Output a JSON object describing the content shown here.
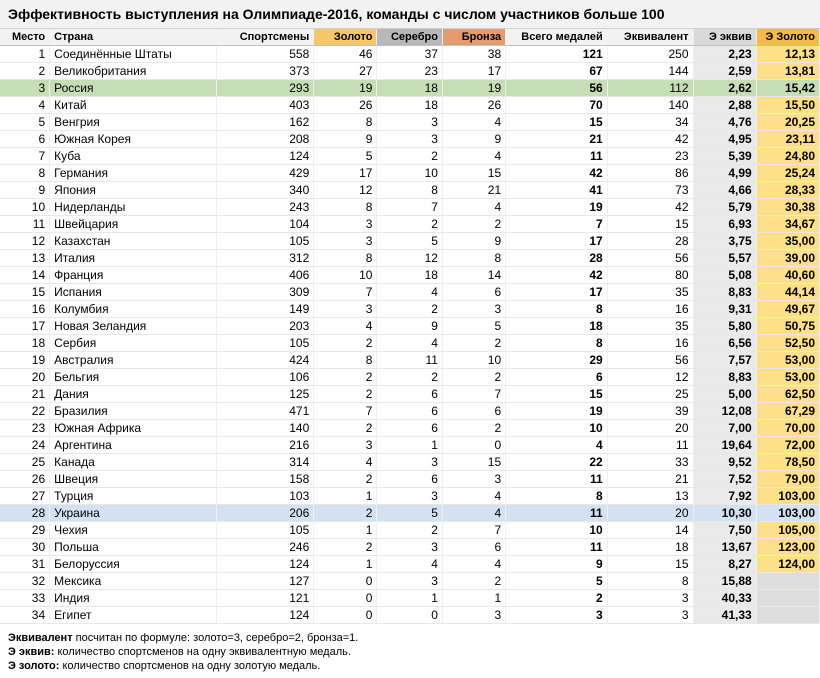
{
  "title": "Эффективность выступления на Олимпиаде-2016, команды с числом участников больше 100",
  "columns": [
    {
      "key": "rank",
      "label": "Место",
      "width": 44,
      "align": "right",
      "headerBg": "#f2f2f2"
    },
    {
      "key": "country",
      "label": "Страна",
      "width": 148,
      "align": "left",
      "headerBg": "#f2f2f2"
    },
    {
      "key": "athletes",
      "label": "Спортсмены",
      "width": 86,
      "align": "right",
      "headerBg": "#f2f2f2"
    },
    {
      "key": "gold",
      "label": "Золото",
      "width": 56,
      "align": "right",
      "headerBg": "#f6c66b"
    },
    {
      "key": "silver",
      "label": "Серебро",
      "width": 58,
      "align": "right",
      "headerBg": "#b8b8b8"
    },
    {
      "key": "bronze",
      "label": "Бронза",
      "width": 56,
      "align": "right",
      "headerBg": "#e49b6e"
    },
    {
      "key": "total",
      "label": "Всего медалей",
      "width": 90,
      "align": "right",
      "bold": true,
      "headerBg": "#f2f2f2"
    },
    {
      "key": "equiv",
      "label": "Эквивалент",
      "width": 76,
      "align": "right",
      "headerBg": "#f2f2f2"
    },
    {
      "key": "e_equiv",
      "label": "Э эквив",
      "width": 56,
      "align": "right",
      "bold": true,
      "headerBg": "#d9d9d9",
      "cellBg": "#eaeaea"
    },
    {
      "key": "e_gold",
      "label": "Э Золото",
      "width": 56,
      "align": "right",
      "bold": true,
      "headerBg": "#f6b94b",
      "cellBg": "#ffe08a"
    }
  ],
  "highlightRows": {
    "3": "#c5deb5",
    "28": "#d4e1f1"
  },
  "missingCellBg": "#dddddd",
  "rows": [
    {
      "rank": 1,
      "country": "Соединённые Штаты",
      "athletes": 558,
      "gold": 46,
      "silver": 37,
      "bronze": 38,
      "total": 121,
      "equiv": 250,
      "e_equiv": "2,23",
      "e_gold": "12,13"
    },
    {
      "rank": 2,
      "country": "Великобритания",
      "athletes": 373,
      "gold": 27,
      "silver": 23,
      "bronze": 17,
      "total": 67,
      "equiv": 144,
      "e_equiv": "2,59",
      "e_gold": "13,81"
    },
    {
      "rank": 3,
      "country": "Россия",
      "athletes": 293,
      "gold": 19,
      "silver": 18,
      "bronze": 19,
      "total": 56,
      "equiv": 112,
      "e_equiv": "2,62",
      "e_gold": "15,42"
    },
    {
      "rank": 4,
      "country": "Китай",
      "athletes": 403,
      "gold": 26,
      "silver": 18,
      "bronze": 26,
      "total": 70,
      "equiv": 140,
      "e_equiv": "2,88",
      "e_gold": "15,50"
    },
    {
      "rank": 5,
      "country": "Венгрия",
      "athletes": 162,
      "gold": 8,
      "silver": 3,
      "bronze": 4,
      "total": 15,
      "equiv": 34,
      "e_equiv": "4,76",
      "e_gold": "20,25"
    },
    {
      "rank": 6,
      "country": "Южная Корея",
      "athletes": 208,
      "gold": 9,
      "silver": 3,
      "bronze": 9,
      "total": 21,
      "equiv": 42,
      "e_equiv": "4,95",
      "e_gold": "23,11"
    },
    {
      "rank": 7,
      "country": "Куба",
      "athletes": 124,
      "gold": 5,
      "silver": 2,
      "bronze": 4,
      "total": 11,
      "equiv": 23,
      "e_equiv": "5,39",
      "e_gold": "24,80"
    },
    {
      "rank": 8,
      "country": "Германия",
      "athletes": 429,
      "gold": 17,
      "silver": 10,
      "bronze": 15,
      "total": 42,
      "equiv": 86,
      "e_equiv": "4,99",
      "e_gold": "25,24"
    },
    {
      "rank": 9,
      "country": "Япония",
      "athletes": 340,
      "gold": 12,
      "silver": 8,
      "bronze": 21,
      "total": 41,
      "equiv": 73,
      "e_equiv": "4,66",
      "e_gold": "28,33"
    },
    {
      "rank": 10,
      "country": "Нидерланды",
      "athletes": 243,
      "gold": 8,
      "silver": 7,
      "bronze": 4,
      "total": 19,
      "equiv": 42,
      "e_equiv": "5,79",
      "e_gold": "30,38"
    },
    {
      "rank": 11,
      "country": "Швейцария",
      "athletes": 104,
      "gold": 3,
      "silver": 2,
      "bronze": 2,
      "total": 7,
      "equiv": 15,
      "e_equiv": "6,93",
      "e_gold": "34,67"
    },
    {
      "rank": 12,
      "country": "Казахстан",
      "athletes": 105,
      "gold": 3,
      "silver": 5,
      "bronze": 9,
      "total": 17,
      "equiv": 28,
      "e_equiv": "3,75",
      "e_gold": "35,00"
    },
    {
      "rank": 13,
      "country": "Италия",
      "athletes": 312,
      "gold": 8,
      "silver": 12,
      "bronze": 8,
      "total": 28,
      "equiv": 56,
      "e_equiv": "5,57",
      "e_gold": "39,00"
    },
    {
      "rank": 14,
      "country": "Франция",
      "athletes": 406,
      "gold": 10,
      "silver": 18,
      "bronze": 14,
      "total": 42,
      "equiv": 80,
      "e_equiv": "5,08",
      "e_gold": "40,60"
    },
    {
      "rank": 15,
      "country": "Испания",
      "athletes": 309,
      "gold": 7,
      "silver": 4,
      "bronze": 6,
      "total": 17,
      "equiv": 35,
      "e_equiv": "8,83",
      "e_gold": "44,14"
    },
    {
      "rank": 16,
      "country": "Колумбия",
      "athletes": 149,
      "gold": 3,
      "silver": 2,
      "bronze": 3,
      "total": 8,
      "equiv": 16,
      "e_equiv": "9,31",
      "e_gold": "49,67"
    },
    {
      "rank": 17,
      "country": "Новая Зеландия",
      "athletes": 203,
      "gold": 4,
      "silver": 9,
      "bronze": 5,
      "total": 18,
      "equiv": 35,
      "e_equiv": "5,80",
      "e_gold": "50,75"
    },
    {
      "rank": 18,
      "country": "Сербия",
      "athletes": 105,
      "gold": 2,
      "silver": 4,
      "bronze": 2,
      "total": 8,
      "equiv": 16,
      "e_equiv": "6,56",
      "e_gold": "52,50"
    },
    {
      "rank": 19,
      "country": "Австралия",
      "athletes": 424,
      "gold": 8,
      "silver": 11,
      "bronze": 10,
      "total": 29,
      "equiv": 56,
      "e_equiv": "7,57",
      "e_gold": "53,00"
    },
    {
      "rank": 20,
      "country": "Бельгия",
      "athletes": 106,
      "gold": 2,
      "silver": 2,
      "bronze": 2,
      "total": 6,
      "equiv": 12,
      "e_equiv": "8,83",
      "e_gold": "53,00"
    },
    {
      "rank": 21,
      "country": "Дания",
      "athletes": 125,
      "gold": 2,
      "silver": 6,
      "bronze": 7,
      "total": 15,
      "equiv": 25,
      "e_equiv": "5,00",
      "e_gold": "62,50"
    },
    {
      "rank": 22,
      "country": "Бразилия",
      "athletes": 471,
      "gold": 7,
      "silver": 6,
      "bronze": 6,
      "total": 19,
      "equiv": 39,
      "e_equiv": "12,08",
      "e_gold": "67,29"
    },
    {
      "rank": 23,
      "country": "Южная Африка",
      "athletes": 140,
      "gold": 2,
      "silver": 6,
      "bronze": 2,
      "total": 10,
      "equiv": 20,
      "e_equiv": "7,00",
      "e_gold": "70,00"
    },
    {
      "rank": 24,
      "country": "Аргентина",
      "athletes": 216,
      "gold": 3,
      "silver": 1,
      "bronze": 0,
      "total": 4,
      "equiv": 11,
      "e_equiv": "19,64",
      "e_gold": "72,00"
    },
    {
      "rank": 25,
      "country": "Канада",
      "athletes": 314,
      "gold": 4,
      "silver": 3,
      "bronze": 15,
      "total": 22,
      "equiv": 33,
      "e_equiv": "9,52",
      "e_gold": "78,50"
    },
    {
      "rank": 26,
      "country": "Швеция",
      "athletes": 158,
      "gold": 2,
      "silver": 6,
      "bronze": 3,
      "total": 11,
      "equiv": 21,
      "e_equiv": "7,52",
      "e_gold": "79,00"
    },
    {
      "rank": 27,
      "country": "Турция",
      "athletes": 103,
      "gold": 1,
      "silver": 3,
      "bronze": 4,
      "total": 8,
      "equiv": 13,
      "e_equiv": "7,92",
      "e_gold": "103,00"
    },
    {
      "rank": 28,
      "country": "Украина",
      "athletes": 206,
      "gold": 2,
      "silver": 5,
      "bronze": 4,
      "total": 11,
      "equiv": 20,
      "e_equiv": "10,30",
      "e_gold": "103,00"
    },
    {
      "rank": 29,
      "country": "Чехия",
      "athletes": 105,
      "gold": 1,
      "silver": 2,
      "bronze": 7,
      "total": 10,
      "equiv": 14,
      "e_equiv": "7,50",
      "e_gold": "105,00"
    },
    {
      "rank": 30,
      "country": "Польша",
      "athletes": 246,
      "gold": 2,
      "silver": 3,
      "bronze": 6,
      "total": 11,
      "equiv": 18,
      "e_equiv": "13,67",
      "e_gold": "123,00"
    },
    {
      "rank": 31,
      "country": "Белоруссия",
      "athletes": 124,
      "gold": 1,
      "silver": 4,
      "bronze": 4,
      "total": 9,
      "equiv": 15,
      "e_equiv": "8,27",
      "e_gold": "124,00"
    },
    {
      "rank": 32,
      "country": "Мексика",
      "athletes": 127,
      "gold": 0,
      "silver": 3,
      "bronze": 2,
      "total": 5,
      "equiv": 8,
      "e_equiv": "15,88",
      "e_gold": ""
    },
    {
      "rank": 33,
      "country": "Индия",
      "athletes": 121,
      "gold": 0,
      "silver": 1,
      "bronze": 1,
      "total": 2,
      "equiv": 3,
      "e_equiv": "40,33",
      "e_gold": ""
    },
    {
      "rank": 34,
      "country": "Египет",
      "athletes": 124,
      "gold": 0,
      "silver": 0,
      "bronze": 3,
      "total": 3,
      "equiv": 3,
      "e_equiv": "41,33",
      "e_gold": ""
    }
  ],
  "footnotes": [
    {
      "bold": "Эквивалент",
      "text": " посчитан по формуле: золото=3, серебро=2, бронза=1."
    },
    {
      "bold": "Э эквив:",
      "text": " количество спортсменов на одну эквивалентную медаль."
    },
    {
      "bold": "Э золото:",
      "text": " количество спортсменов на одну золотую медаль."
    }
  ]
}
